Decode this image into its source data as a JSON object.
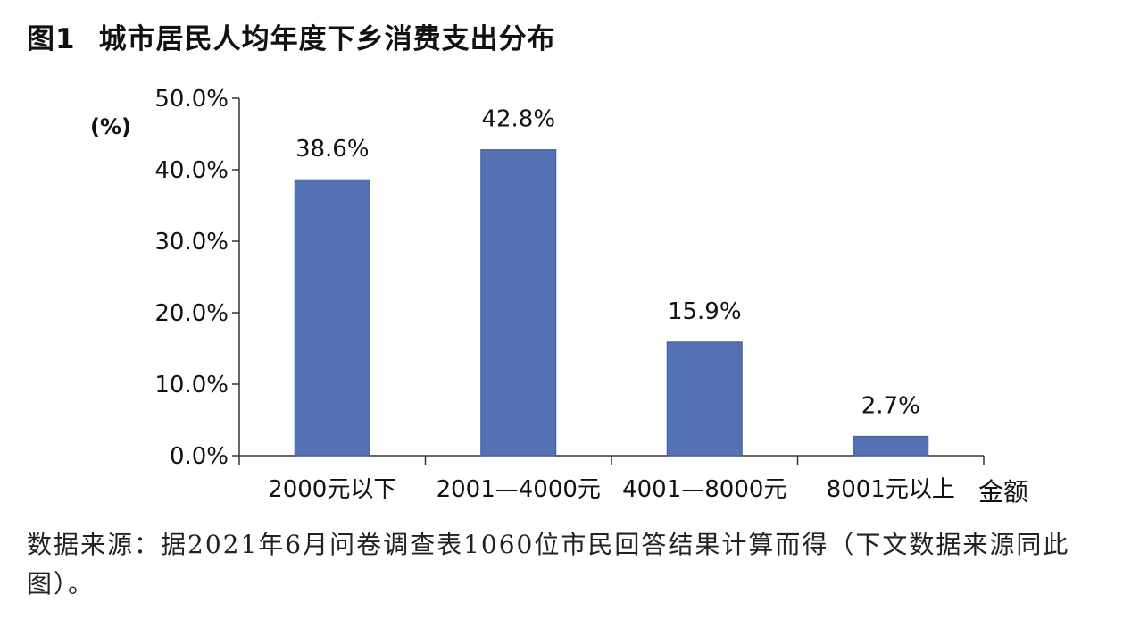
{
  "figure": {
    "number": "图1",
    "title": "城市居民人均年度下乡消费支出分布"
  },
  "source_note": "数据来源：据2021年6月问卷调查表1060位市民回答结果计算而得（下文数据来源同此图）。",
  "colors": {
    "bar": "#5472b3",
    "axis": "#333333",
    "text": "#111111"
  },
  "chart_data": {
    "type": "bar",
    "title": "城市居民人均年度下乡消费支出分布",
    "xlabel": "金额",
    "ylabel": "(%)",
    "categories": [
      "2000元以下",
      "2001—4000元",
      "4001—8000元",
      "8001元以上"
    ],
    "values": [
      38.6,
      42.8,
      15.9,
      2.7
    ],
    "data_labels": [
      "38.6%",
      "42.8%",
      "15.9%",
      "2.7%"
    ],
    "ylim": [
      0,
      50
    ],
    "yticks": [
      0,
      10,
      20,
      30,
      40,
      50
    ],
    "ytick_labels": [
      "0.0%",
      "10.0%",
      "20.0%",
      "30.0%",
      "40.0%",
      "50.0%"
    ],
    "grid": false,
    "legend": "none"
  }
}
